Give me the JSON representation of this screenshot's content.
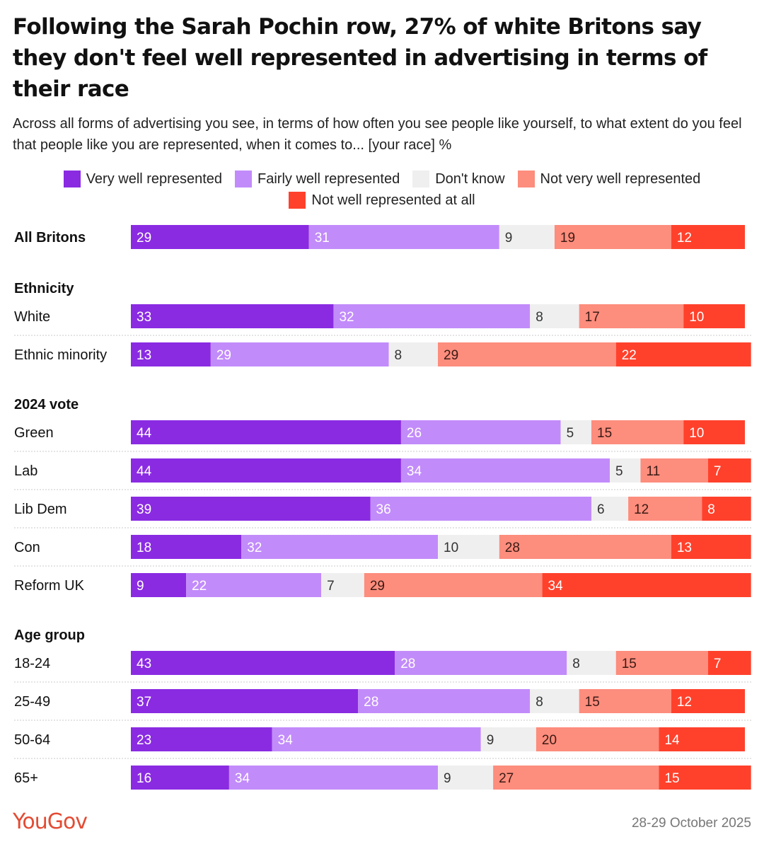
{
  "title": "Following the Sarah Pochin row, 27% of white Britons say they don't feel well represented in advertising in terms of their race",
  "subtitle": "Across all forms of advertising you see, in terms of how often you see people like yourself, to what extent do you feel that people like you are represented, when it comes to... [your race] %",
  "footer": {
    "brand": "YouGov",
    "date": "28-29 October 2025"
  },
  "chart_data": {
    "type": "bar",
    "stacked": true,
    "orientation": "horizontal",
    "unit": "%",
    "series": [
      {
        "name": "Very well represented",
        "color": "#8a2be2"
      },
      {
        "name": "Fairly well represented",
        "color": "#c28bfa"
      },
      {
        "name": "Don't know",
        "color": "#efefef"
      },
      {
        "name": "Not very well represented",
        "color": "#fd8d7d"
      },
      {
        "name": "Not well represented at all",
        "color": "#ff412c"
      }
    ],
    "groups": [
      {
        "heading": "",
        "rows": [
          {
            "label": "All Britons",
            "bold": true,
            "values": [
              29,
              31,
              9,
              19,
              12
            ]
          }
        ]
      },
      {
        "heading": "Ethnicity",
        "rows": [
          {
            "label": "White",
            "values": [
              33,
              32,
              8,
              17,
              10
            ]
          },
          {
            "label": "Ethnic minority",
            "values": [
              13,
              29,
              8,
              29,
              22
            ]
          }
        ]
      },
      {
        "heading": "2024 vote",
        "rows": [
          {
            "label": "Green",
            "values": [
              44,
              26,
              5,
              15,
              10
            ]
          },
          {
            "label": "Lab",
            "values": [
              44,
              34,
              5,
              11,
              7
            ]
          },
          {
            "label": "Lib Dem",
            "values": [
              39,
              36,
              6,
              12,
              8
            ]
          },
          {
            "label": "Con",
            "values": [
              18,
              32,
              10,
              28,
              13
            ]
          },
          {
            "label": "Reform UK",
            "values": [
              9,
              22,
              7,
              29,
              34
            ]
          }
        ]
      },
      {
        "heading": "Age group",
        "rows": [
          {
            "label": "18-24",
            "values": [
              43,
              28,
              8,
              15,
              7
            ]
          },
          {
            "label": "25-49",
            "values": [
              37,
              28,
              8,
              15,
              12
            ]
          },
          {
            "label": "50-64",
            "values": [
              23,
              34,
              9,
              20,
              14
            ]
          },
          {
            "label": "65+",
            "values": [
              16,
              34,
              9,
              27,
              15
            ]
          }
        ]
      }
    ]
  }
}
